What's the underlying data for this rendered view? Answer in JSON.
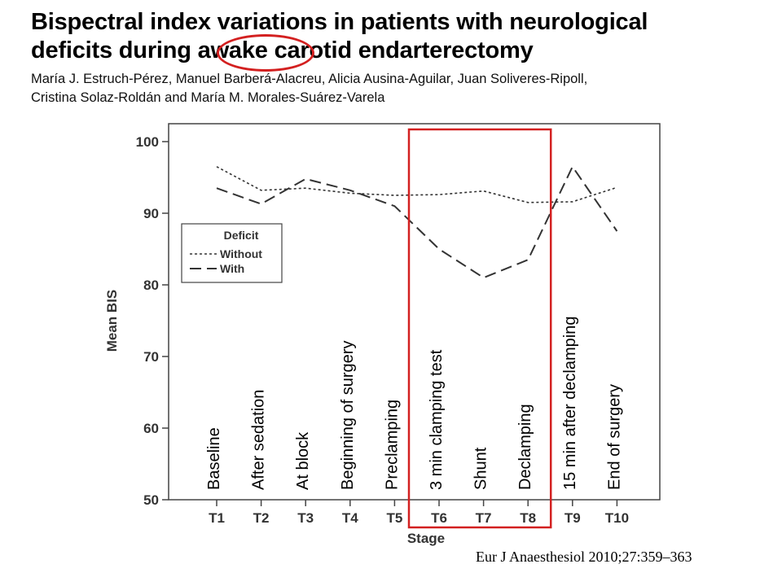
{
  "header": {
    "title_line1": "Bispectral index variations in patients with neurological",
    "title_line2": "deficits during awake carotid endarterectomy",
    "authors_line1": "María J. Estruch-Pérez, Manuel Barberá-Alacreu, Alicia Ausina-Aguilar, Juan Soliveres-Ripoll,",
    "authors_line2": "Cristina Solaz-Roldán and María M. Morales-Suárez-Varela"
  },
  "citation": "Eur J Anaesthesiol 2010;27:359–363",
  "colors": {
    "highlight": "#d32020",
    "line": "#333333"
  },
  "chart_data": {
    "type": "line",
    "title": "",
    "xlabel": "Stage",
    "ylabel": "Mean BIS",
    "ylim": [
      50,
      100
    ],
    "yticks": [
      50,
      60,
      70,
      80,
      90,
      100
    ],
    "categories": [
      "T1",
      "T2",
      "T3",
      "T4",
      "T5",
      "T6",
      "T7",
      "T8",
      "T9",
      "T10"
    ],
    "stage_names": [
      "Baseline",
      "After sedation",
      "At block",
      "Beginning of surgery",
      "Preclamping",
      "3 min clamping test",
      "Shunt",
      "Declamping",
      "15 min after declamping",
      "End of surgery"
    ],
    "legend_title": "Deficit",
    "legend_position": "left",
    "series": [
      {
        "name": "Without",
        "style": "dotted",
        "values": [
          96.5,
          93.2,
          93.5,
          92.8,
          92.5,
          92.6,
          93.1,
          91.5,
          91.6,
          93.6
        ]
      },
      {
        "name": "With",
        "style": "dashed",
        "values": [
          93.5,
          91.3,
          94.8,
          93.2,
          91.0,
          85.0,
          81.0,
          83.5,
          96.5,
          87.5
        ]
      }
    ],
    "highlight_range": [
      "T6",
      "T8"
    ],
    "grid": false
  }
}
